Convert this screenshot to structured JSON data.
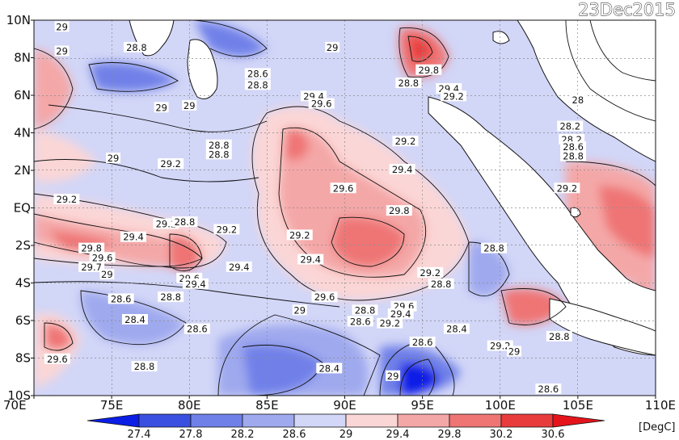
{
  "date_label": "23Dec2015",
  "units_label": "[DegC]",
  "lat_labels": [
    "10N",
    "8N",
    "6N",
    "4N",
    "2N",
    "EQ",
    "2S",
    "4S",
    "6S",
    "8S",
    "10S"
  ],
  "lon_labels": [
    "70E",
    "75E",
    "80E",
    "85E",
    "90E",
    "95E",
    "100E",
    "105E",
    "110E"
  ],
  "colorbar": {
    "ticks": [
      "27.4",
      "27.8",
      "28.2",
      "28.6",
      "29",
      "29.4",
      "29.8",
      "30.2",
      "30.6"
    ],
    "colors": [
      "#0a1ee6",
      "#3a50e0",
      "#6f80e8",
      "#9fa9ee",
      "#d2d6f7",
      "#fbd6d6",
      "#f4a7a7",
      "#ef7474",
      "#e83c3c",
      "#e5141b"
    ]
  },
  "contour_labels": [
    {
      "text": "29",
      "lon": 71.8,
      "lat": 9.6
    },
    {
      "text": "29",
      "lon": 71.8,
      "lat": 8.3
    },
    {
      "text": "28.8",
      "lon": 76.6,
      "lat": 8.5
    },
    {
      "text": "29",
      "lon": 78.2,
      "lat": 5.3
    },
    {
      "text": "29",
      "lon": 80.0,
      "lat": 5.4
    },
    {
      "text": "28.6",
      "lon": 84.4,
      "lat": 7.1
    },
    {
      "text": "28.8",
      "lon": 84.4,
      "lat": 6.5
    },
    {
      "text": "29.4",
      "lon": 88.0,
      "lat": 5.9
    },
    {
      "text": "29.6",
      "lon": 88.5,
      "lat": 5.5
    },
    {
      "text": "29",
      "lon": 89.2,
      "lat": 8.5
    },
    {
      "text": "28.8",
      "lon": 94.1,
      "lat": 6.6
    },
    {
      "text": "29.8",
      "lon": 95.4,
      "lat": 7.3
    },
    {
      "text": "29.4",
      "lon": 96.7,
      "lat": 6.3
    },
    {
      "text": "29.2",
      "lon": 97.0,
      "lat": 5.9
    },
    {
      "text": "28",
      "lon": 105.0,
      "lat": 5.7
    },
    {
      "text": "28.2",
      "lon": 104.5,
      "lat": 4.3
    },
    {
      "text": "28.2",
      "lon": 104.6,
      "lat": 3.6
    },
    {
      "text": "28.6",
      "lon": 104.7,
      "lat": 3.2
    },
    {
      "text": "28.8",
      "lon": 104.7,
      "lat": 2.7
    },
    {
      "text": "28.8",
      "lon": 81.9,
      "lat": 3.3
    },
    {
      "text": "28.8",
      "lon": 81.9,
      "lat": 2.8
    },
    {
      "text": "29",
      "lon": 75.1,
      "lat": 2.6
    },
    {
      "text": "29.2",
      "lon": 78.8,
      "lat": 2.3
    },
    {
      "text": "29.2",
      "lon": 93.9,
      "lat": 3.5
    },
    {
      "text": "29.4",
      "lon": 93.7,
      "lat": 2.0
    },
    {
      "text": "29.6",
      "lon": 89.9,
      "lat": 1.0
    },
    {
      "text": "29.8",
      "lon": 93.5,
      "lat": -0.2
    },
    {
      "text": "29.2",
      "lon": 104.3,
      "lat": 1.0
    },
    {
      "text": "29.2",
      "lon": 72.1,
      "lat": 0.4
    },
    {
      "text": "29.2",
      "lon": 78.5,
      "lat": -0.9
    },
    {
      "text": "28.8",
      "lon": 79.7,
      "lat": -0.8
    },
    {
      "text": "29.2",
      "lon": 82.4,
      "lat": -1.2
    },
    {
      "text": "29.4",
      "lon": 76.4,
      "lat": -1.6
    },
    {
      "text": "29.2",
      "lon": 87.1,
      "lat": -1.5
    },
    {
      "text": "29.8",
      "lon": 73.7,
      "lat": -2.2
    },
    {
      "text": "29.6",
      "lon": 74.4,
      "lat": -2.7
    },
    {
      "text": "29.7",
      "lon": 73.7,
      "lat": -3.2
    },
    {
      "text": "29",
      "lon": 74.7,
      "lat": -3.6
    },
    {
      "text": "29.4",
      "lon": 87.8,
      "lat": -2.8
    },
    {
      "text": "28.8",
      "lon": 99.6,
      "lat": -2.2
    },
    {
      "text": "29.4",
      "lon": 83.2,
      "lat": -3.2
    },
    {
      "text": "29.6",
      "lon": 80.0,
      "lat": -3.8
    },
    {
      "text": "29.4",
      "lon": 80.4,
      "lat": -4.1
    },
    {
      "text": "29.2",
      "lon": 95.5,
      "lat": -3.5
    },
    {
      "text": "28.8",
      "lon": 96.2,
      "lat": -4.1
    },
    {
      "text": "28.6",
      "lon": 75.6,
      "lat": -4.9
    },
    {
      "text": "28.8",
      "lon": 78.8,
      "lat": -4.8
    },
    {
      "text": "29.6",
      "lon": 88.7,
      "lat": -4.8
    },
    {
      "text": "29",
      "lon": 87.1,
      "lat": -5.5
    },
    {
      "text": "28.8",
      "lon": 91.3,
      "lat": -5.5
    },
    {
      "text": "28.6",
      "lon": 91.0,
      "lat": -6.1
    },
    {
      "text": "29.6",
      "lon": 93.8,
      "lat": -5.3
    },
    {
      "text": "29.4",
      "lon": 93.6,
      "lat": -5.7
    },
    {
      "text": "29.2",
      "lon": 92.9,
      "lat": -6.2
    },
    {
      "text": "28.4",
      "lon": 76.5,
      "lat": -6.0
    },
    {
      "text": "28.6",
      "lon": 80.5,
      "lat": -6.5
    },
    {
      "text": "28.4",
      "lon": 97.2,
      "lat": -6.5
    },
    {
      "text": "28.6",
      "lon": 95.0,
      "lat": -7.2
    },
    {
      "text": "28.8",
      "lon": 103.8,
      "lat": -6.9
    },
    {
      "text": "29.2",
      "lon": 100.0,
      "lat": -7.4
    },
    {
      "text": "29",
      "lon": 100.9,
      "lat": -7.7
    },
    {
      "text": "29.6",
      "lon": 71.5,
      "lat": -8.1
    },
    {
      "text": "28.8",
      "lon": 77.1,
      "lat": -8.5
    },
    {
      "text": "28.4",
      "lon": 89.0,
      "lat": -8.6
    },
    {
      "text": "29",
      "lon": 93.1,
      "lat": -9.0
    },
    {
      "text": "28.6",
      "lon": 103.1,
      "lat": -9.7
    }
  ]
}
